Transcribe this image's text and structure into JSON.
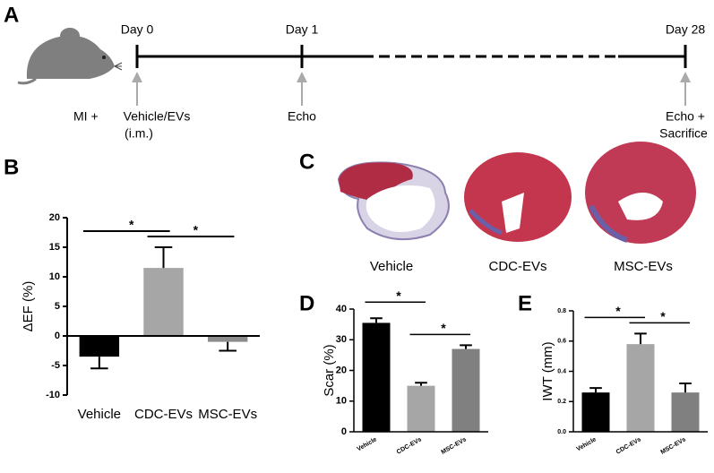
{
  "panel_labels": [
    "A",
    "B",
    "C",
    "D",
    "E"
  ],
  "timeline": {
    "time_points": [
      "Day 0",
      "Day 1",
      "Day 28"
    ],
    "events": [
      "MI +",
      "Vehicle/EVs",
      "(i.m.)",
      "Echo",
      "Echo +",
      "Sacrifice"
    ]
  },
  "histology": {
    "labels": [
      "Vehicle",
      "CDC-EVs",
      "MSC-EVs"
    ]
  },
  "chart_data": [
    {
      "type": "bar",
      "y_label": "ΔEF (%)",
      "categories": [
        "Vehicle",
        "CDC-EVs",
        "MSC-EVs"
      ],
      "values": [
        -3.5,
        11.5,
        -1
      ],
      "errors": [
        2,
        3.5,
        1.5
      ],
      "colors": [
        "#000000",
        "#a6a6a6",
        "#8c8c8c"
      ],
      "ylim": [
        -10,
        20
      ],
      "yticks": [
        -10,
        -5,
        0,
        5,
        10,
        15,
        20
      ],
      "annotations": [
        "*",
        "*"
      ]
    },
    {
      "type": "bar",
      "y_label": "Scar (%)",
      "categories": [
        "Vehicle",
        "CDC-EVs",
        "MSC-EVs"
      ],
      "values": [
        35.5,
        15,
        27
      ],
      "errors": [
        1.5,
        1,
        1.2
      ],
      "colors": [
        "#000000",
        "#a6a6a6",
        "#808080"
      ],
      "ylim": [
        0,
        40
      ],
      "yticks": [
        0,
        10,
        20,
        30,
        40
      ],
      "annotations": [
        "*",
        "*"
      ]
    },
    {
      "type": "bar",
      "y_label": "IWT (mm)",
      "categories": [
        "Vehicle",
        "CDC-EVs",
        "MSC-EVs"
      ],
      "values": [
        0.26,
        0.58,
        0.26
      ],
      "errors": [
        0.03,
        0.07,
        0.06
      ],
      "colors": [
        "#000000",
        "#a6a6a6",
        "#808080"
      ],
      "ylim": [
        0,
        0.8
      ],
      "yticks": [
        {
          "value": 0,
          "label": "0.0"
        },
        0.2,
        0.4,
        0.6,
        0.8
      ],
      "annotations": [
        "*",
        "*"
      ]
    }
  ]
}
